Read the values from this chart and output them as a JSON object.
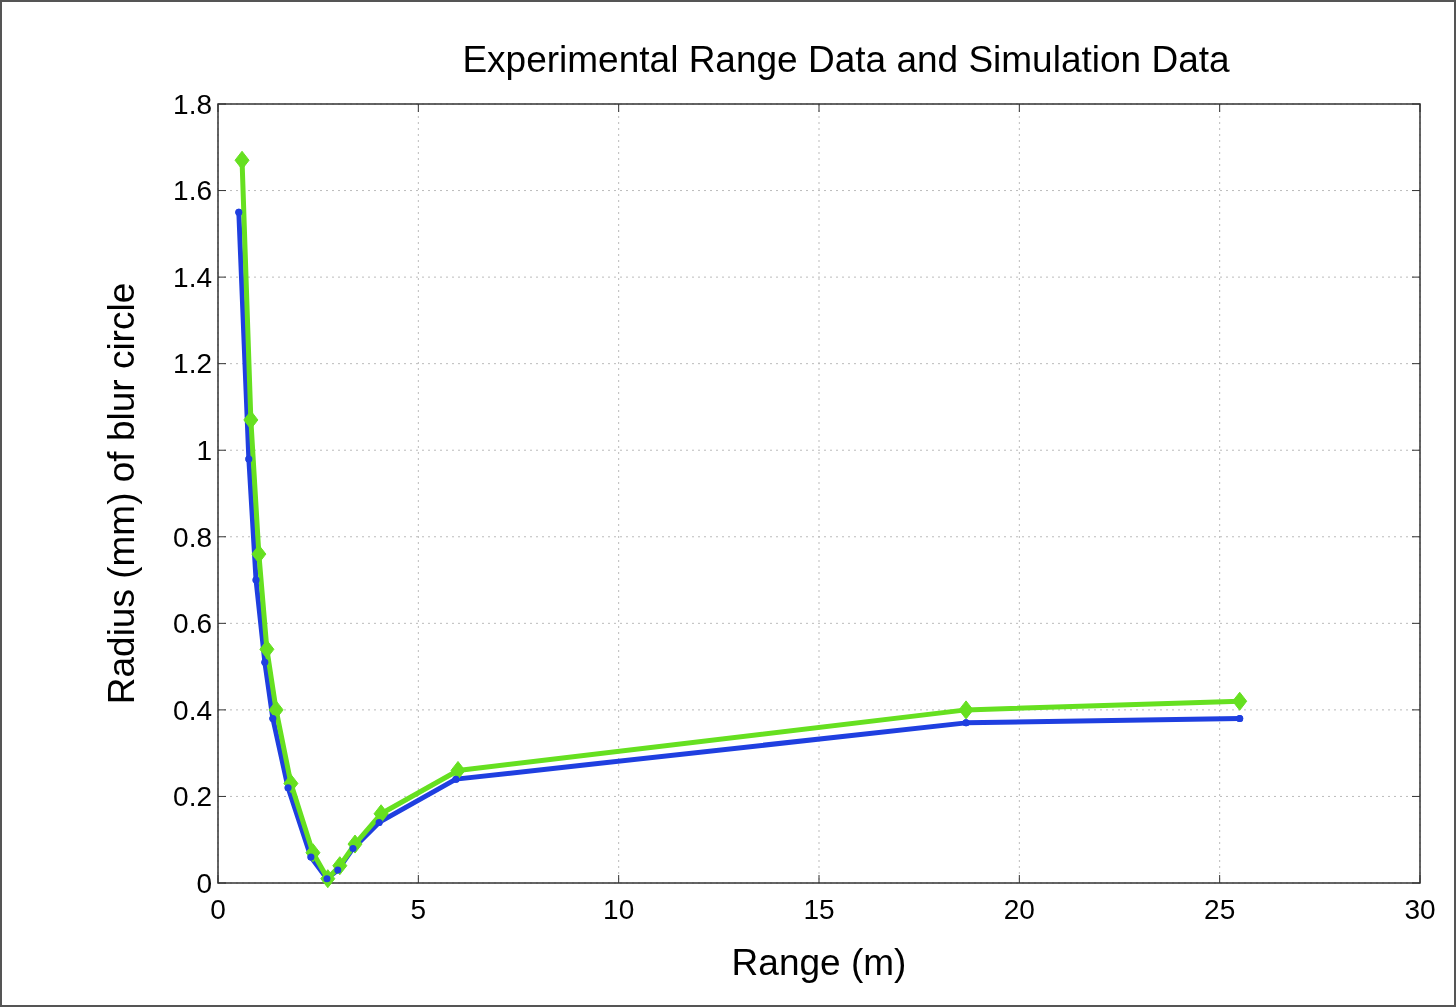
{
  "chart_data": {
    "type": "line",
    "title": "Experimental Range Data and Simulation Data",
    "xlabel": "Range (m)",
    "ylabel": "Radius (mm) of blur circle",
    "xlim": [
      0,
      30
    ],
    "xticks": [
      0,
      5,
      10,
      15,
      20,
      25,
      30
    ],
    "ylim": [
      0,
      1.8
    ],
    "yticks": [
      0,
      0.2,
      0.4,
      0.6,
      0.8,
      1,
      1.2,
      1.4,
      1.6,
      1.8
    ],
    "grid": true,
    "series": [
      {
        "color": "#1f3fe0",
        "marker": "circle",
        "x": [
          0.52,
          0.77,
          0.95,
          1.17,
          1.37,
          1.75,
          2.32,
          2.72,
          2.99,
          3.37,
          4.02,
          5.94,
          18.67,
          25.5
        ],
        "values": [
          1.55,
          0.98,
          0.7,
          0.51,
          0.38,
          0.22,
          0.06,
          0.01,
          0.03,
          0.08,
          0.14,
          0.24,
          0.37,
          0.38
        ]
      },
      {
        "color": "#66e020",
        "marker": "diamond",
        "x": [
          0.6,
          0.82,
          1.02,
          1.22,
          1.45,
          1.82,
          2.37,
          2.74,
          3.04,
          3.42,
          4.07,
          5.99,
          18.67,
          25.5
        ],
        "values": [
          1.67,
          1.07,
          0.76,
          0.54,
          0.4,
          0.23,
          0.07,
          0.01,
          0.04,
          0.09,
          0.16,
          0.26,
          0.4,
          0.42
        ]
      }
    ]
  }
}
